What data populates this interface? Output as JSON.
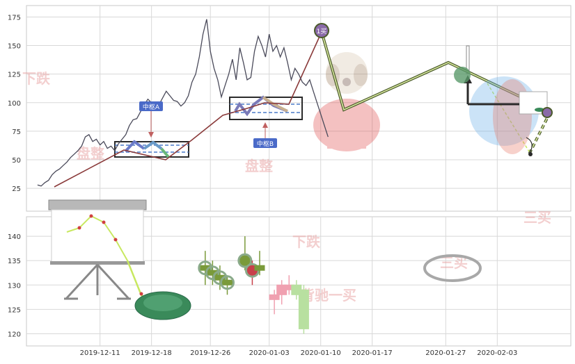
{
  "chart_data": [
    {
      "type": "line",
      "panel": "upper",
      "ylim": [
        5,
        185
      ],
      "yticks": [
        25,
        50,
        75,
        100,
        125,
        150,
        175
      ],
      "grid": true,
      "series": [
        {
          "values": [
            [
              -8.5,
              28
            ],
            [
              -8.0,
              27
            ],
            [
              -7.5,
              30
            ],
            [
              -7.0,
              32
            ],
            [
              -6.5,
              37
            ],
            [
              -6.0,
              40
            ],
            [
              -5.5,
              42
            ],
            [
              -5.0,
              45
            ],
            [
              -4.5,
              48
            ],
            [
              -4.0,
              52
            ],
            [
              -3.5,
              55
            ],
            [
              -3.0,
              58
            ],
            [
              -2.5,
              62
            ],
            [
              -2.0,
              70
            ],
            [
              -1.5,
              72
            ],
            [
              -1.0,
              66
            ],
            [
              -0.5,
              68
            ],
            [
              0.0,
              63
            ],
            [
              0.5,
              66
            ],
            [
              1.0,
              60
            ],
            [
              1.5,
              62
            ],
            [
              2.0,
              58
            ],
            [
              2.5,
              64
            ],
            [
              3.0,
              68
            ],
            [
              3.5,
              72
            ],
            [
              4.0,
              80
            ],
            [
              4.5,
              85
            ],
            [
              5.0,
              86
            ],
            [
              5.5,
              92
            ],
            [
              6.0,
              98
            ],
            [
              6.5,
              103
            ],
            [
              7.0,
              100
            ],
            [
              7.5,
              96
            ],
            [
              8.0,
              98
            ],
            [
              8.5,
              104
            ],
            [
              9.0,
              110
            ],
            [
              9.5,
              106
            ],
            [
              10.0,
              102
            ],
            [
              10.5,
              101
            ],
            [
              11.0,
              97
            ],
            [
              11.5,
              100
            ],
            [
              12.0,
              106
            ],
            [
              12.5,
              118
            ],
            [
              13.0,
              125
            ],
            [
              13.5,
              140
            ],
            [
              14.0,
              160
            ],
            [
              14.5,
              173
            ],
            [
              15.0,
              145
            ],
            [
              15.5,
              130
            ],
            [
              16.0,
              120
            ],
            [
              16.5,
              105
            ],
            [
              17.0,
              115
            ],
            [
              17.5,
              125
            ],
            [
              18.0,
              138
            ],
            [
              18.5,
              120
            ],
            [
              19.0,
              148
            ],
            [
              19.5,
              135
            ],
            [
              20.0,
              120
            ],
            [
              20.5,
              122
            ],
            [
              21.0,
              145
            ],
            [
              21.5,
              158
            ],
            [
              22.0,
              150
            ],
            [
              22.5,
              140
            ],
            [
              23.0,
              160
            ],
            [
              23.5,
              145
            ],
            [
              24.0,
              150
            ],
            [
              24.5,
              140
            ],
            [
              25.0,
              148
            ],
            [
              25.5,
              135
            ],
            [
              26.0,
              120
            ],
            [
              26.5,
              130
            ],
            [
              27.0,
              125
            ],
            [
              27.5,
              118
            ],
            [
              28.0,
              115
            ],
            [
              28.5,
              120
            ],
            [
              29.0,
              110
            ],
            [
              29.5,
              100
            ],
            [
              30.0,
              90
            ],
            [
              30.5,
              80
            ],
            [
              31.0,
              70
            ]
          ]
        }
      ]
    },
    {
      "type": "candlestick",
      "panel": "lower",
      "ylim": [
        117.5,
        144
      ],
      "yticks": [
        120,
        125,
        130,
        135,
        140
      ],
      "grid": true,
      "series": [
        {
          "values": [
            {
              "x": 14.3,
              "open": 133,
              "close": 134,
              "low": 130,
              "high": 137
            },
            {
              "x": 15.3,
              "open": 132,
              "close": 133,
              "low": 130,
              "high": 135
            },
            {
              "x": 16.3,
              "open": 131,
              "close": 132,
              "low": 129,
              "high": 134
            },
            {
              "x": 17.3,
              "open": 130,
              "close": 131,
              "low": 128,
              "high": 132
            },
            {
              "x": 19.7,
              "open": 134,
              "close": 136,
              "low": 133,
              "high": 140
            },
            {
              "x": 20.7,
              "open": 134,
              "close": 132,
              "low": 130,
              "high": 135
            },
            {
              "x": 21.7,
              "open": 133,
              "close": 134,
              "low": 132,
              "high": 137
            },
            {
              "x": 23.7,
              "open": 127,
              "close": 128,
              "low": 124,
              "high": 129
            },
            {
              "x": 24.7,
              "open": 128,
              "close": 130,
              "low": 126,
              "high": 131
            },
            {
              "x": 25.7,
              "open": 129,
              "close": 130,
              "low": 128,
              "high": 132
            },
            {
              "x": 26.7,
              "open": 130,
              "close": 128,
              "low": 127,
              "high": 131
            },
            {
              "x": 27.7,
              "open": 121,
              "close": 129,
              "low": 120,
              "high": 130
            }
          ]
        }
      ]
    }
  ],
  "x_axis": {
    "ticks": [
      {
        "x": 0,
        "label": "2019-12-11"
      },
      {
        "x": 7,
        "label": "2019-12-18"
      },
      {
        "x": 15,
        "label": "2019-12-26"
      },
      {
        "x": 23,
        "label": "2020-01-03"
      },
      {
        "x": 30,
        "label": "2020-01-10"
      },
      {
        "x": 37,
        "label": "2020-01-17"
      },
      {
        "x": 47,
        "label": "2020-01-27"
      },
      {
        "x": 54,
        "label": "2020-02-03"
      }
    ]
  },
  "annotations": {
    "hub_a": "中枢A",
    "hub_b": "中枢B",
    "buy_point": "1买",
    "watermarks": [
      "下跌",
      "盘整",
      "盘整",
      "下跌",
      "背驰一买",
      "三买",
      "三买"
    ]
  },
  "colors": {
    "price_line": "#4a4a5a",
    "trend_line": "#8a3a3a",
    "segment_outer": "#4a5a2a",
    "segment_inner": "#d8e8a0",
    "hub_box": "#2a2a2a",
    "hub_mid": "#4a7ac8",
    "label_bg": "#4a6ac8",
    "watermark": "#e8a0a0",
    "candle_green": "#7a9a3a",
    "candle_red": "#c8404a",
    "candle_pink": "#f0a0b0",
    "candle_lightgreen": "#b8e0a0",
    "grid": "#d8d8d8"
  }
}
